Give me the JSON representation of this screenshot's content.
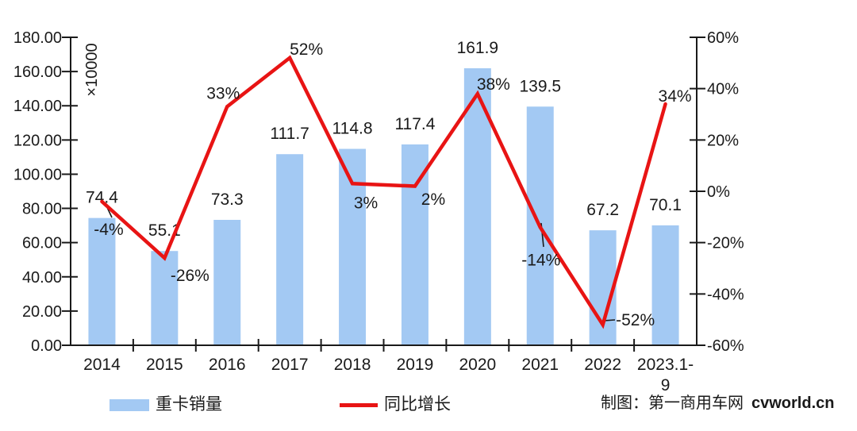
{
  "chart_data": {
    "type": "combo-bar-line",
    "title": "",
    "categories": [
      "2014",
      "2015",
      "2016",
      "2017",
      "2018",
      "2019",
      "2020",
      "2021",
      "2022",
      "2023.1-\n9"
    ],
    "series": [
      {
        "name": "重卡销量",
        "type": "bar",
        "axis": "left",
        "color": "#A3C9F3",
        "values": [
          74.4,
          55.1,
          73.3,
          111.7,
          114.8,
          117.4,
          161.9,
          139.5,
          67.2,
          70.1
        ],
        "labels": [
          "74.4",
          "55.1",
          "73.3",
          "111.7",
          "114.8",
          "117.4",
          "161.9",
          "139.5",
          "67.2",
          "70.1"
        ]
      },
      {
        "name": "同比增长",
        "type": "line",
        "axis": "right",
        "color": "#E81414",
        "values": [
          -4,
          -26,
          33,
          52,
          3,
          2,
          38,
          -14,
          -52,
          34
        ],
        "labels": [
          "-4%",
          "-26%",
          "33%",
          "52%",
          "3%",
          "2%",
          "38%",
          "-14%",
          "-52%",
          "34%"
        ]
      }
    ],
    "left_axis": {
      "unit_label": "×10000",
      "min": 0,
      "max": 180,
      "step": 20,
      "tick_labels": [
        "180.00",
        "160.00",
        "140.00",
        "120.00",
        "100.00",
        "80.00",
        "60.00",
        "40.00",
        "20.00",
        "0.00"
      ]
    },
    "right_axis": {
      "min": -60,
      "max": 60,
      "step": 20,
      "tick_labels": [
        "60%",
        "40%",
        "20%",
        "0%",
        "-20%",
        "-40%",
        "-60%"
      ]
    },
    "grid": false,
    "legend_position": "bottom",
    "text_color": "#1a1a1a",
    "axis_color": "#1a1a1a"
  },
  "credit": {
    "prefix": "制图：第一商用车网",
    "site": "cvworld.cn"
  }
}
